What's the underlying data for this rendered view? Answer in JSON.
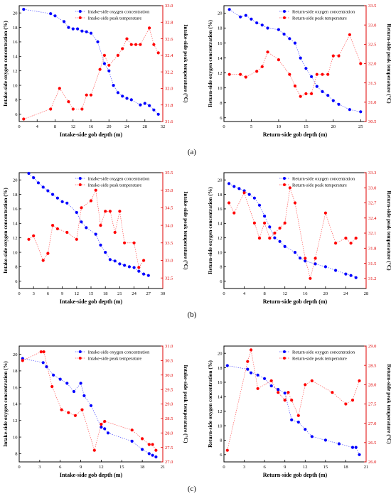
{
  "panel_labels": [
    "(a)",
    "(b)",
    "(c)"
  ],
  "chart_data": [
    {
      "type": "scatter",
      "xlabel": "Intake-side gob depth (m)",
      "ylabel": "Intake-side oxygen concentration (%)",
      "y2label": "Intake-side peak temperature (°C)",
      "xlim": [
        0,
        32
      ],
      "xticks": [
        0,
        4,
        8,
        12,
        16,
        20,
        24,
        28,
        32
      ],
      "ylim": [
        5,
        21
      ],
      "yticks": [
        6,
        8,
        10,
        12,
        14,
        16,
        18,
        20
      ],
      "y2lim": [
        31.6,
        33.0
      ],
      "y2ticks": [
        31.6,
        31.8,
        32.0,
        32.2,
        32.4,
        32.6,
        32.8,
        33.0
      ],
      "legend_position": "top-right",
      "series": [
        {
          "name": "Intake-side oxygen concentration",
          "axis": "left",
          "color": "#0000ff",
          "x": [
            1,
            7,
            8,
            10,
            11,
            12,
            13,
            14,
            15,
            16,
            17.5,
            19,
            20,
            21,
            22,
            23,
            24,
            25,
            27,
            28,
            29,
            30,
            31
          ],
          "y": [
            20.5,
            19.9,
            19.6,
            18.8,
            18.0,
            17.8,
            17.8,
            17.5,
            17.4,
            17.2,
            16.0,
            13.0,
            12.0,
            10.0,
            9.0,
            8.5,
            8.2,
            8.0,
            7.3,
            7.5,
            7.2,
            6.6,
            6.0
          ]
        },
        {
          "name": "Intake-side peak temperature",
          "axis": "right",
          "color": "#ff0000",
          "x": [
            1,
            7,
            9,
            11,
            12,
            14,
            15,
            16,
            18,
            19,
            20,
            22,
            23,
            24,
            25,
            26,
            27,
            29,
            30,
            31
          ],
          "y": [
            31.63,
            31.75,
            32.0,
            31.84,
            31.75,
            31.75,
            31.92,
            31.92,
            32.23,
            32.4,
            32.28,
            32.4,
            32.48,
            32.6,
            32.53,
            32.53,
            32.53,
            32.73,
            32.53,
            32.43
          ]
        }
      ]
    },
    {
      "type": "scatter",
      "xlabel": "Return-side gob depth (m)",
      "ylabel": "Return-side oxygen concentration (%)",
      "y2label": "Return-side peak temperature (°C)",
      "xlim": [
        0,
        26
      ],
      "xticks": [
        0,
        5,
        10,
        15,
        20,
        25
      ],
      "ylim": [
        5.5,
        21
      ],
      "yticks": [
        6,
        8,
        10,
        12,
        14,
        16,
        18,
        20
      ],
      "y2lim": [
        30.5,
        33.5
      ],
      "y2ticks": [
        30.5,
        31.0,
        31.5,
        32.0,
        32.5,
        33.0,
        33.5
      ],
      "legend_position": "top-right",
      "series": [
        {
          "name": "Return-side oxygen concentration",
          "axis": "left",
          "color": "#0000ff",
          "x": [
            1,
            3,
            4,
            5,
            6,
            7,
            8,
            10,
            11,
            12,
            13,
            14,
            15,
            16,
            17,
            18,
            19,
            20,
            21,
            23,
            25
          ],
          "y": [
            20.5,
            19.5,
            19.7,
            19.2,
            18.7,
            18.4,
            18.0,
            17.8,
            17.2,
            16.6,
            16.0,
            14.0,
            12.6,
            11.5,
            10.2,
            9.5,
            9.0,
            8.3,
            7.8,
            7.1,
            6.8
          ]
        },
        {
          "name": "Return-side peak temperature",
          "axis": "right",
          "color": "#ff0000",
          "x": [
            1,
            3,
            4,
            6,
            7,
            8,
            10,
            12,
            13,
            14,
            15,
            16,
            17,
            18,
            19,
            20,
            21,
            23,
            25
          ],
          "y": [
            31.72,
            31.72,
            31.65,
            31.8,
            31.92,
            32.3,
            32.1,
            31.72,
            31.42,
            31.15,
            31.22,
            31.22,
            31.72,
            31.72,
            31.72,
            32.2,
            32.2,
            32.75,
            32.0
          ]
        }
      ]
    },
    {
      "type": "scatter",
      "xlabel": "Intake-side gob depth (m)",
      "ylabel": "Intake-side oxygen concentration (%)",
      "y2label": "Intake-side peak temperature (°C)",
      "xlim": [
        0,
        30
      ],
      "xticks": [
        0,
        3,
        6,
        9,
        12,
        15,
        18,
        21,
        24,
        27,
        30
      ],
      "ylim": [
        5,
        21
      ],
      "yticks": [
        6,
        8,
        10,
        12,
        14,
        16,
        18,
        20
      ],
      "y2lim": [
        32.2,
        35.5
      ],
      "y2ticks": [
        32.5,
        33.0,
        33.5,
        34.0,
        34.5,
        35.0,
        35.5
      ],
      "legend_position": "top-right",
      "series": [
        {
          "name": "Intake-side oxygen concentration",
          "axis": "left",
          "color": "#0000ff",
          "x": [
            2,
            3,
            4,
            5,
            6,
            7,
            8,
            9,
            10,
            12,
            13,
            14,
            16,
            17,
            18,
            19,
            20,
            21,
            22,
            23,
            24,
            25,
            26,
            27
          ],
          "y": [
            20.9,
            20.3,
            19.6,
            19.0,
            18.5,
            18.0,
            17.5,
            17.0,
            16.8,
            15.5,
            14.2,
            13.4,
            12.5,
            11.0,
            10.0,
            9.0,
            8.8,
            8.4,
            8.2,
            8.0,
            7.9,
            7.4,
            7.0,
            6.8
          ]
        },
        {
          "name": "Intake-side peak temperature",
          "axis": "right",
          "color": "#ff0000",
          "x": [
            2,
            3,
            5,
            6,
            7,
            8,
            10,
            12,
            13,
            15,
            16,
            17,
            18,
            19,
            20,
            21,
            22,
            24,
            25,
            26
          ],
          "y": [
            33.6,
            33.7,
            33.0,
            33.2,
            34.0,
            33.9,
            33.8,
            33.6,
            34.5,
            34.7,
            35.0,
            34.0,
            34.4,
            34.4,
            33.8,
            34.4,
            33.5,
            33.5,
            32.8,
            33.0
          ]
        }
      ]
    },
    {
      "type": "scatter",
      "xlabel": "Return-side gob depth (m)",
      "ylabel": "Return-side oxygen concentration (%)",
      "y2label": "Return-side peak temperature (°C)",
      "xlim": [
        0,
        28
      ],
      "xticks": [
        0,
        4,
        8,
        12,
        16,
        20,
        24,
        28
      ],
      "ylim": [
        5,
        21
      ],
      "yticks": [
        6,
        8,
        10,
        12,
        14,
        16,
        18,
        20
      ],
      "y2lim": [
        31.0,
        33.3
      ],
      "y2ticks": [
        31.2,
        31.5,
        31.8,
        32.1,
        32.4,
        32.7,
        33.0,
        33.3
      ],
      "legend_position": "top-right",
      "series": [
        {
          "name": "Return-side oxygen concentration",
          "axis": "left",
          "color": "#0000ff",
          "x": [
            1,
            2,
            3,
            4,
            5,
            6,
            7,
            8,
            9,
            10,
            11,
            12,
            14,
            15,
            16,
            18,
            20,
            22,
            24,
            25,
            26
          ],
          "y": [
            19.5,
            19.1,
            18.8,
            18.5,
            18.0,
            17.5,
            16.5,
            15.0,
            13.5,
            12.0,
            11.5,
            10.8,
            10.0,
            9.2,
            8.8,
            8.4,
            8.0,
            7.5,
            7.0,
            6.8,
            6.5
          ]
        },
        {
          "name": "Return-side peak temperature",
          "axis": "right",
          "color": "#ff0000",
          "x": [
            1,
            2,
            4,
            6,
            7,
            8,
            9,
            10,
            11,
            12,
            13,
            14,
            16,
            17,
            18,
            20,
            22,
            24,
            25,
            26
          ],
          "y": [
            32.7,
            32.5,
            32.9,
            32.3,
            32.0,
            32.3,
            32.0,
            32.1,
            32.2,
            32.3,
            33.0,
            32.7,
            31.6,
            31.2,
            31.6,
            32.5,
            31.9,
            32.0,
            31.9,
            32.0
          ]
        }
      ]
    },
    {
      "type": "scatter",
      "xlabel": "Intake-side gob depth (m)",
      "ylabel": "Intake-side oxygen concentration (%)",
      "y2label": "Intake-side peak temperature (°C)",
      "xlim": [
        0,
        21
      ],
      "xticks": [
        0,
        3,
        6,
        9,
        12,
        15,
        18,
        21
      ],
      "ylim": [
        7,
        21
      ],
      "yticks": [
        8,
        10,
        12,
        14,
        16,
        18,
        20
      ],
      "y2lim": [
        27.0,
        31.0
      ],
      "y2ticks": [
        27.0,
        27.5,
        28.0,
        28.5,
        29.0,
        29.5,
        30.0,
        30.5,
        31.0
      ],
      "legend_position": "top-right",
      "series": [
        {
          "name": "Intake-side oxygen concentration",
          "axis": "left",
          "color": "#0000ff",
          "x": [
            0.5,
            3.5,
            4,
            5,
            6,
            7,
            8,
            9,
            9.5,
            10.5,
            12,
            12.5,
            13,
            16.5,
            18,
            19,
            19.5,
            20
          ],
          "y": [
            19.5,
            19.0,
            18.5,
            17.5,
            17.0,
            16.5,
            15.5,
            16.5,
            15.0,
            13.8,
            11.2,
            11.0,
            10.5,
            9.5,
            8.5,
            8.0,
            7.8,
            7.6
          ]
        },
        {
          "name": "Intake-side peak temperature",
          "axis": "right",
          "color": "#ff0000",
          "x": [
            0.5,
            3.2,
            3.6,
            4.8,
            6.2,
            7.2,
            8.2,
            9.2,
            11,
            12,
            12.5,
            16.5,
            18,
            19,
            19.5,
            20
          ],
          "y": [
            30.5,
            30.8,
            30.8,
            29.6,
            28.8,
            28.7,
            28.6,
            28.8,
            27.4,
            28.3,
            28.4,
            28.1,
            27.8,
            27.6,
            27.6,
            27.4
          ]
        }
      ]
    },
    {
      "type": "scatter",
      "xlabel": "Return-side gob depth (m)",
      "ylabel": "Return-side oxygen concentration (%)",
      "y2label": "Return-side peak temperature (°C)",
      "xlim": [
        0,
        21
      ],
      "xticks": [
        0,
        3,
        6,
        9,
        12,
        15,
        18,
        21
      ],
      "ylim": [
        5,
        21
      ],
      "yticks": [
        6,
        8,
        10,
        12,
        14,
        16,
        18,
        20
      ],
      "y2lim": [
        26.0,
        29.0
      ],
      "y2ticks": [
        26.0,
        26.5,
        27.0,
        27.5,
        28.0,
        28.5,
        29.0
      ],
      "legend_position": "top-right",
      "series": [
        {
          "name": "Return-side oxygen concentration",
          "axis": "left",
          "color": "#0000ff",
          "x": [
            0.5,
            3.5,
            4,
            5,
            6,
            7,
            8,
            9,
            10,
            11,
            12,
            13,
            15,
            17,
            19,
            19.5,
            20
          ],
          "y": [
            18.3,
            17.8,
            17.3,
            17.0,
            16.5,
            15.5,
            15.0,
            14.5,
            10.8,
            10.5,
            9.5,
            8.5,
            8.0,
            7.5,
            7.0,
            7.0,
            6.0
          ]
        },
        {
          "name": "Return-side peak temperature",
          "axis": "right",
          "color": "#ff0000",
          "x": [
            0.5,
            3.5,
            4,
            5,
            7,
            8,
            9,
            9.5,
            10,
            11,
            12,
            13,
            16,
            18,
            19,
            20
          ],
          "y": [
            26.3,
            28.6,
            28.9,
            27.9,
            28.1,
            27.8,
            27.6,
            27.8,
            27.6,
            27.2,
            28.0,
            28.1,
            27.8,
            27.5,
            27.6,
            28.1
          ]
        }
      ]
    }
  ]
}
